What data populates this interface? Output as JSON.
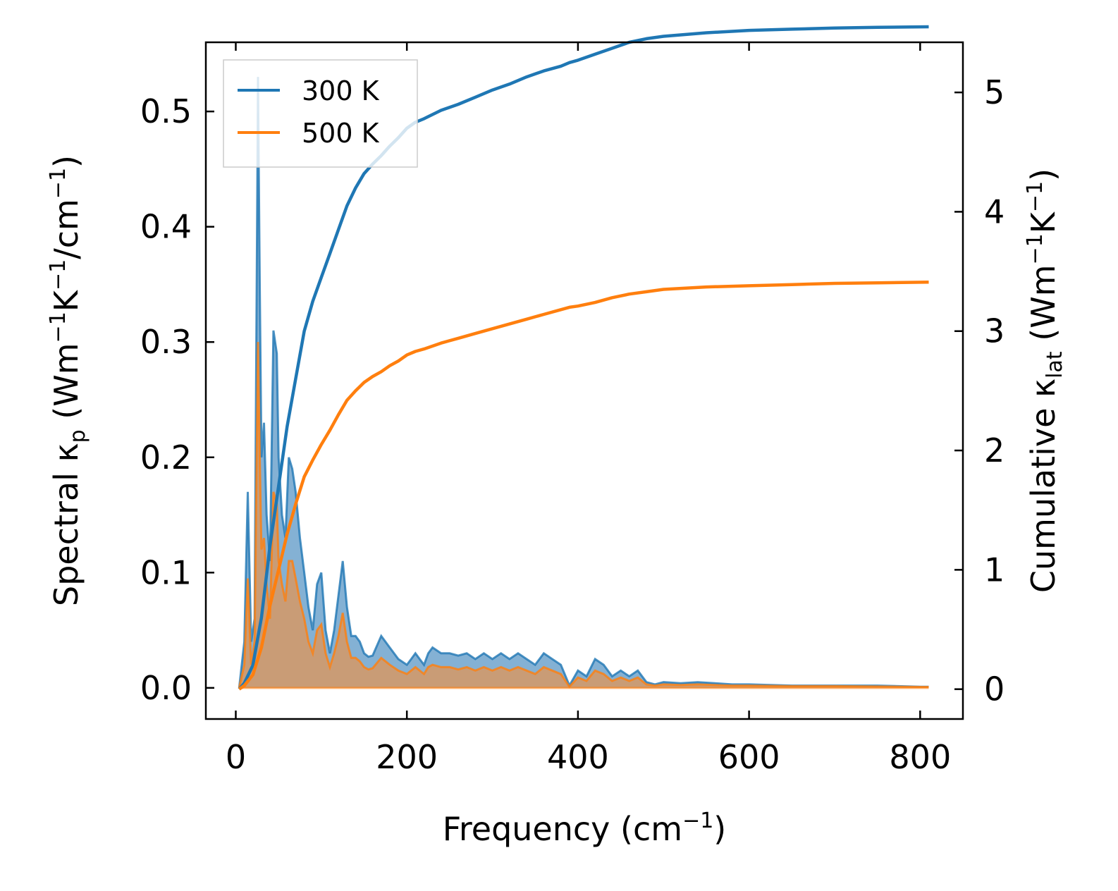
{
  "chart_data": {
    "type": "area",
    "xlabel": {
      "main": "Frequency (cm",
      "sup": "−1",
      "close": ")"
    },
    "ylabel_left": {
      "t1": "Spectral κ",
      "sub": "p",
      "t2": " (Wm",
      "sup1": "−1",
      "t3": "K",
      "sup2": "−1",
      "t4": "/cm",
      "sup3": "−1",
      "t5": ")"
    },
    "ylabel_right": {
      "t1": "Cumulative κ",
      "sub": "lat",
      "t2": " (Wm",
      "sup1": "−1",
      "t3": "K",
      "sup2": "−1",
      "t4": ")"
    },
    "xlim": [
      -35,
      850
    ],
    "ylim_left": [
      -0.027,
      0.56
    ],
    "ylim_right": [
      -0.25,
      5.42
    ],
    "x_ticks": [
      0,
      200,
      400,
      600,
      800
    ],
    "x_tick_labels": [
      "0",
      "200",
      "400",
      "600",
      "800"
    ],
    "y_left_ticks": [
      0.0,
      0.1,
      0.2,
      0.3,
      0.4,
      0.5
    ],
    "y_left_tick_labels": [
      "0.0",
      "0.1",
      "0.2",
      "0.3",
      "0.4",
      "0.5"
    ],
    "y_right_ticks": [
      0,
      1,
      2,
      3,
      4,
      5
    ],
    "y_right_tick_labels": [
      "0",
      "1",
      "2",
      "3",
      "4",
      "5"
    ],
    "legend": {
      "position": "top-left",
      "entries": [
        "300 K",
        "500 K"
      ]
    },
    "colors": {
      "t300": "#1f77b4",
      "t500": "#ff7f0e",
      "fill300": "#6fa3cc",
      "fill500": "#d09a6c"
    },
    "spectral_x": [
      4,
      10,
      14,
      18,
      22,
      26,
      28,
      30,
      33,
      36,
      40,
      44,
      48,
      50,
      54,
      58,
      62,
      66,
      70,
      75,
      80,
      85,
      90,
      95,
      100,
      105,
      110,
      115,
      120,
      125,
      130,
      135,
      140,
      145,
      150,
      155,
      160,
      170,
      180,
      190,
      200,
      205,
      210,
      215,
      220,
      225,
      230,
      240,
      250,
      260,
      270,
      280,
      290,
      300,
      310,
      320,
      330,
      340,
      350,
      360,
      370,
      380,
      390,
      400,
      410,
      420,
      430,
      440,
      450,
      460,
      470,
      480,
      490,
      500,
      520,
      540,
      560,
      580,
      600,
      650,
      700,
      750,
      800,
      810
    ],
    "spectral_300": [
      0.0,
      0.04,
      0.17,
      0.04,
      0.06,
      0.53,
      0.35,
      0.2,
      0.23,
      0.15,
      0.11,
      0.31,
      0.29,
      0.2,
      0.15,
      0.13,
      0.2,
      0.19,
      0.17,
      0.13,
      0.1,
      0.07,
      0.05,
      0.09,
      0.1,
      0.05,
      0.03,
      0.05,
      0.08,
      0.11,
      0.07,
      0.045,
      0.045,
      0.04,
      0.03,
      0.027,
      0.028,
      0.045,
      0.035,
      0.025,
      0.02,
      0.025,
      0.03,
      0.025,
      0.02,
      0.03,
      0.035,
      0.03,
      0.03,
      0.028,
      0.03,
      0.025,
      0.03,
      0.025,
      0.03,
      0.025,
      0.03,
      0.025,
      0.02,
      0.03,
      0.025,
      0.02,
      0.002,
      0.015,
      0.01,
      0.025,
      0.02,
      0.01,
      0.015,
      0.01,
      0.015,
      0.005,
      0.003,
      0.005,
      0.004,
      0.005,
      0.004,
      0.003,
      0.003,
      0.002,
      0.002,
      0.002,
      0.001,
      0.001
    ],
    "spectral_500": [
      0.0,
      0.02,
      0.095,
      0.02,
      0.04,
      0.3,
      0.2,
      0.12,
      0.13,
      0.09,
      0.06,
      0.17,
      0.16,
      0.11,
      0.09,
      0.075,
      0.11,
      0.11,
      0.095,
      0.075,
      0.06,
      0.04,
      0.03,
      0.05,
      0.055,
      0.03,
      0.018,
      0.03,
      0.045,
      0.065,
      0.04,
      0.026,
      0.026,
      0.023,
      0.018,
      0.016,
      0.017,
      0.026,
      0.02,
      0.015,
      0.012,
      0.015,
      0.018,
      0.015,
      0.012,
      0.018,
      0.02,
      0.018,
      0.018,
      0.016,
      0.018,
      0.015,
      0.018,
      0.015,
      0.018,
      0.015,
      0.018,
      0.015,
      0.012,
      0.018,
      0.015,
      0.012,
      0.001,
      0.009,
      0.006,
      0.015,
      0.012,
      0.006,
      0.009,
      0.006,
      0.009,
      0.003,
      0.002,
      0.003,
      0.0025,
      0.003,
      0.0025,
      0.002,
      0.002,
      0.0015,
      0.0015,
      0.0012,
      0.0008,
      0.0008
    ],
    "cumulative_x": [
      4,
      10,
      20,
      30,
      40,
      50,
      60,
      70,
      80,
      90,
      100,
      110,
      120,
      130,
      140,
      150,
      160,
      170,
      180,
      190,
      200,
      210,
      220,
      240,
      260,
      280,
      300,
      320,
      340,
      360,
      380,
      390,
      400,
      420,
      440,
      460,
      480,
      500,
      550,
      600,
      650,
      700,
      750,
      810
    ],
    "cumulative_300": [
      0.0,
      0.05,
      0.2,
      0.6,
      1.2,
      1.7,
      2.2,
      2.6,
      3.0,
      3.25,
      3.45,
      3.65,
      3.85,
      4.05,
      4.2,
      4.32,
      4.4,
      4.47,
      4.55,
      4.62,
      4.7,
      4.75,
      4.78,
      4.85,
      4.9,
      4.96,
      5.02,
      5.07,
      5.13,
      5.18,
      5.22,
      5.25,
      5.27,
      5.32,
      5.37,
      5.42,
      5.45,
      5.47,
      5.5,
      5.52,
      5.53,
      5.54,
      5.545,
      5.55
    ],
    "cumulative_500": [
      0.0,
      0.03,
      0.12,
      0.35,
      0.7,
      1.0,
      1.3,
      1.55,
      1.78,
      1.92,
      2.05,
      2.17,
      2.3,
      2.42,
      2.5,
      2.57,
      2.62,
      2.66,
      2.71,
      2.75,
      2.8,
      2.83,
      2.85,
      2.9,
      2.94,
      2.98,
      3.02,
      3.06,
      3.1,
      3.14,
      3.18,
      3.2,
      3.21,
      3.24,
      3.28,
      3.31,
      3.33,
      3.35,
      3.37,
      3.38,
      3.39,
      3.4,
      3.405,
      3.41
    ]
  }
}
